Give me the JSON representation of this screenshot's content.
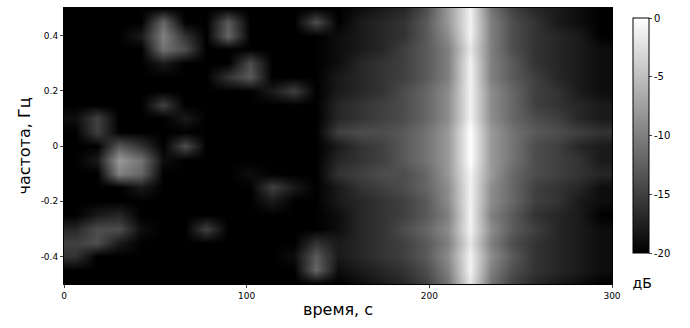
{
  "chart_data": {
    "type": "heatmap",
    "x_label": "время, с",
    "y_label": "частота, Гц",
    "colorbar_title": "дБ",
    "colors": [
      "#000000",
      "#ffffff"
    ],
    "xlim": [
      0,
      300
    ],
    "xticks": [
      0,
      100,
      200,
      300
    ],
    "ylim": [
      -0.5,
      0.5
    ],
    "yticks": [
      -0.4,
      -0.2,
      0,
      0.2,
      0.4
    ],
    "zlim": [
      -20,
      0
    ],
    "zticks": [
      0,
      -5,
      -10,
      -15,
      -20
    ],
    "x": [
      6,
      18,
      30,
      42,
      54,
      66,
      78,
      90,
      102,
      114,
      126,
      138,
      150,
      162,
      174,
      186,
      198,
      210,
      222,
      234,
      246,
      258,
      270,
      282,
      294
    ],
    "y": [
      -0.5,
      -0.45,
      -0.4,
      -0.35,
      -0.3,
      -0.25,
      -0.2,
      -0.15,
      -0.1,
      -0.05,
      0,
      0.05,
      0.1,
      0.15,
      0.2,
      0.25,
      0.3,
      0.35,
      0.4,
      0.45,
      0.5
    ],
    "z": [
      [
        -20,
        -20,
        -20,
        -20,
        -20,
        -20,
        -20,
        -20,
        -20,
        -20,
        -20,
        -20,
        -20,
        -19,
        -18,
        -17,
        -15,
        -11,
        -2,
        -11,
        -15,
        -17,
        -18,
        -19,
        -20
      ],
      [
        -20,
        -20,
        -20,
        -20,
        -20,
        -20,
        -20,
        -20,
        -20,
        -20,
        -20,
        -12,
        -19,
        -18,
        -17,
        -16,
        -14,
        -10,
        -1,
        -10,
        -14,
        -16,
        -17,
        -18,
        -19
      ],
      [
        -16,
        -20,
        -20,
        -20,
        -20,
        -20,
        -20,
        -20,
        -20,
        -20,
        -19,
        -13,
        -18,
        -17,
        -16,
        -15,
        -13,
        -9,
        -1,
        -9,
        -13,
        -16,
        -17,
        -18,
        -19
      ],
      [
        -15,
        -14,
        -18,
        -20,
        -20,
        -20,
        -20,
        -20,
        -20,
        -20,
        -20,
        -16,
        -18,
        -17,
        -16,
        -15,
        -13,
        -10,
        -2,
        -10,
        -14,
        -16,
        -17,
        -18,
        -19
      ],
      [
        -17,
        -14,
        -14,
        -19,
        -20,
        -20,
        -15,
        -20,
        -20,
        -20,
        -20,
        -20,
        -19,
        -17,
        -16,
        -14,
        -12,
        -9,
        -1,
        -9,
        -13,
        -15,
        -17,
        -18,
        -19
      ],
      [
        -20,
        -18,
        -17,
        -20,
        -20,
        -20,
        -20,
        -20,
        -20,
        -20,
        -20,
        -20,
        -19,
        -17,
        -16,
        -15,
        -13,
        -10,
        -1,
        -10,
        -13,
        -16,
        -17,
        -18,
        -20
      ],
      [
        -20,
        -20,
        -20,
        -20,
        -20,
        -20,
        -20,
        -20,
        -20,
        -18,
        -20,
        -20,
        -18,
        -17,
        -16,
        -15,
        -13,
        -9,
        -1,
        -9,
        -12,
        -15,
        -16,
        -18,
        -19
      ],
      [
        -20,
        -20,
        -20,
        -18,
        -20,
        -20,
        -20,
        -20,
        -20,
        -15,
        -18,
        -20,
        -18,
        -16,
        -15,
        -14,
        -12,
        -9,
        -1,
        -9,
        -12,
        -15,
        -16,
        -17,
        -19
      ],
      [
        -20,
        -20,
        -10,
        -12,
        -20,
        -20,
        -20,
        -20,
        -19,
        -20,
        -20,
        -20,
        -16,
        -15,
        -14,
        -14,
        -12,
        -8,
        -1,
        -8,
        -12,
        -14,
        -15,
        -16,
        -17
      ],
      [
        -20,
        -18,
        -8,
        -11,
        -19,
        -20,
        -20,
        -20,
        -20,
        -20,
        -20,
        -20,
        -17,
        -16,
        -15,
        -13,
        -11,
        -8,
        0,
        -8,
        -11,
        -14,
        -15,
        -16,
        -18
      ],
      [
        -20,
        -20,
        -13,
        -16,
        -20,
        -14,
        -20,
        -20,
        -20,
        -20,
        -20,
        -20,
        -18,
        -16,
        -15,
        -13,
        -11,
        -8,
        0,
        -8,
        -11,
        -14,
        -15,
        -17,
        -18
      ],
      [
        -20,
        -15,
        -20,
        -20,
        -20,
        -20,
        -20,
        -20,
        -20,
        -20,
        -20,
        -20,
        -15,
        -14,
        -14,
        -13,
        -11,
        -8,
        0,
        -8,
        -11,
        -13,
        -14,
        -15,
        -16
      ],
      [
        -19,
        -15,
        -20,
        -20,
        -20,
        -18,
        -20,
        -20,
        -20,
        -20,
        -20,
        -20,
        -17,
        -16,
        -15,
        -14,
        -12,
        -9,
        -1,
        -9,
        -12,
        -14,
        -15,
        -17,
        -18
      ],
      [
        -20,
        -20,
        -20,
        -20,
        -15,
        -20,
        -20,
        -20,
        -20,
        -20,
        -20,
        -20,
        -17,
        -16,
        -15,
        -14,
        -12,
        -9,
        -1,
        -9,
        -12,
        -15,
        -16,
        -17,
        -18
      ],
      [
        -20,
        -20,
        -20,
        -20,
        -20,
        -20,
        -20,
        -20,
        -20,
        -18,
        -15,
        -20,
        -18,
        -17,
        -16,
        -14,
        -12,
        -9,
        -1,
        -9,
        -12,
        -15,
        -16,
        -18,
        -19
      ],
      [
        -20,
        -20,
        -20,
        -20,
        -20,
        -20,
        -20,
        -16,
        -13,
        -20,
        -20,
        -20,
        -18,
        -17,
        -16,
        -15,
        -13,
        -10,
        -1,
        -10,
        -13,
        -15,
        -17,
        -18,
        -19
      ],
      [
        -20,
        -20,
        -20,
        -20,
        -18,
        -20,
        -20,
        -20,
        -14,
        -20,
        -20,
        -20,
        -19,
        -17,
        -16,
        -15,
        -13,
        -10,
        -1,
        -10,
        -13,
        -16,
        -17,
        -18,
        -19
      ],
      [
        -20,
        -20,
        -20,
        -20,
        -11,
        -14,
        -20,
        -20,
        -20,
        -20,
        -20,
        -20,
        -19,
        -18,
        -17,
        -15,
        -13,
        -10,
        -2,
        -10,
        -14,
        -16,
        -17,
        -18,
        -19
      ],
      [
        -20,
        -20,
        -20,
        -18,
        -10,
        -16,
        -20,
        -12,
        -20,
        -20,
        -20,
        -20,
        -19,
        -18,
        -17,
        -16,
        -13,
        -9,
        -1,
        -10,
        -14,
        -16,
        -17,
        -18,
        -20
      ],
      [
        -20,
        -20,
        -20,
        -20,
        -12,
        -20,
        -20,
        -13,
        -20,
        -20,
        -20,
        -14,
        -20,
        -18,
        -17,
        -16,
        -13,
        -8,
        -1,
        -10,
        -14,
        -16,
        -18,
        -19,
        -20
      ],
      [
        -20,
        -20,
        -20,
        -20,
        -20,
        -20,
        -20,
        -20,
        -20,
        -20,
        -20,
        -20,
        -20,
        -19,
        -18,
        -17,
        -14,
        -8,
        -1,
        -11,
        -15,
        -17,
        -18,
        -19,
        -20
      ]
    ]
  }
}
